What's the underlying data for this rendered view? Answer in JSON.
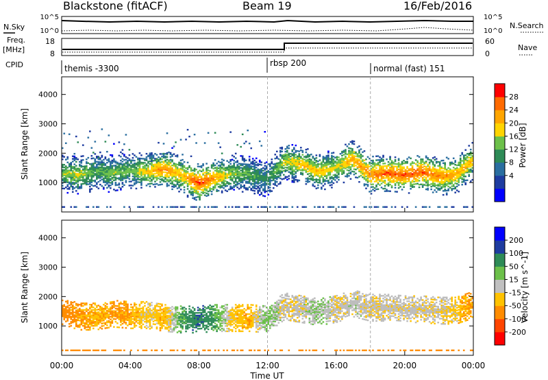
{
  "header": {
    "station": "Blackstone (fitACF)",
    "beam": "Beam 19",
    "date": "16/Feb/2016"
  },
  "left_labels": {
    "nsky": "N.Sky",
    "freq": "Freq.",
    "freq_unit": "[MHz]",
    "cpid": "CPID"
  },
  "right_labels": {
    "nsearch": "N.Search",
    "nave": "Nave"
  },
  "nsky_axis": {
    "top": "10^5",
    "bottom": "10^0"
  },
  "freq_axis": {
    "left_ticks": [
      "18",
      "8"
    ],
    "right_ticks": [
      "60",
      "0"
    ]
  },
  "cpid_segments": [
    {
      "label": "themis -3300",
      "start_hour": 0.0
    },
    {
      "label": "rbsp 200",
      "start_hour": 12.0
    },
    {
      "label": "normal (fast) 151",
      "start_hour": 18.0
    }
  ],
  "x_axis": {
    "label": "Time UT",
    "ticks": [
      "00:00",
      "04:00",
      "08:00",
      "12:00",
      "16:00",
      "20:00",
      "00:00"
    ],
    "range_hours": [
      0,
      24
    ]
  },
  "colors": {
    "power_scale": [
      "#0000ff",
      "#1e3ca0",
      "#2a6ea0",
      "#2e8b57",
      "#6cc04a",
      "#ffd400",
      "#ffa500",
      "#ff6a00",
      "#ff0000"
    ],
    "velocity_scale": [
      "#0000ff",
      "#1e3ca0",
      "#2e8b57",
      "#6cc04a",
      "#c0c0c0",
      "#ffc200",
      "#ff8c00",
      "#ff4500",
      "#ff0000"
    ],
    "ground_scatter": "#bcbcbc"
  },
  "chart_data": [
    {
      "type": "heatmap",
      "name": "power",
      "ylabel": "Slant Range [km]",
      "yticks": [
        1000,
        2000,
        3000,
        4000
      ],
      "colorbar_label": "Power [dB]",
      "colorbar_ticks": [
        28,
        24,
        20,
        16,
        12,
        8,
        4
      ],
      "colorbar_range": [
        0,
        30
      ],
      "echo_band": {
        "times_hours": [
          0.0,
          1.0,
          2.0,
          3.0,
          4.0,
          5.0,
          6.0,
          7.0,
          8.0,
          9.0,
          10.0,
          11.0,
          12.0,
          13.0,
          14.0,
          15.0,
          16.0,
          17.0,
          18.0,
          19.0,
          20.0,
          21.0,
          22.0,
          23.0,
          24.0
        ],
        "center_range_km": [
          1300,
          1250,
          1350,
          1300,
          1400,
          1350,
          1450,
          1250,
          950,
          1150,
          1300,
          1250,
          1100,
          1700,
          1600,
          1350,
          1500,
          1800,
          1250,
          1300,
          1250,
          1350,
          1200,
          1250,
          1750
        ],
        "peak_power_db": [
          16,
          18,
          14,
          16,
          14,
          20,
          24,
          20,
          28,
          22,
          16,
          14,
          12,
          18,
          20,
          20,
          18,
          22,
          24,
          26,
          26,
          26,
          24,
          22,
          20
        ]
      }
    },
    {
      "type": "heatmap",
      "name": "velocity",
      "ylabel": "Slant Range [km]",
      "yticks": [
        1000,
        2000,
        3000,
        4000
      ],
      "colorbar_label": "Velocity [m s^-1]",
      "colorbar_ticks": [
        200,
        100,
        50,
        15,
        -15,
        -50,
        -100,
        -200
      ],
      "colorbar_range": [
        -250,
        250
      ],
      "echo_band": {
        "times_hours": [
          0.0,
          1.0,
          2.0,
          3.0,
          4.0,
          5.0,
          6.0,
          7.0,
          8.0,
          9.0,
          10.0,
          11.0,
          12.0,
          13.0,
          14.0,
          15.0,
          16.0,
          17.0,
          18.0,
          19.0,
          20.0,
          21.0,
          22.0,
          23.0,
          24.0
        ],
        "center_range_km": [
          1500,
          1300,
          1300,
          1400,
          1350,
          1350,
          1250,
          1200,
          1200,
          1250,
          1250,
          1250,
          1200,
          1650,
          1550,
          1450,
          1550,
          1750,
          1600,
          1600,
          1550,
          1550,
          1500,
          1500,
          1700
        ],
        "velocity_ms": [
          -80,
          -60,
          -40,
          -60,
          -50,
          -20,
          -40,
          50,
          100,
          50,
          -30,
          -40,
          30,
          -10,
          -5,
          20,
          -10,
          0,
          -5,
          -5,
          -5,
          -5,
          -5,
          -30,
          -60
        ]
      }
    }
  ]
}
